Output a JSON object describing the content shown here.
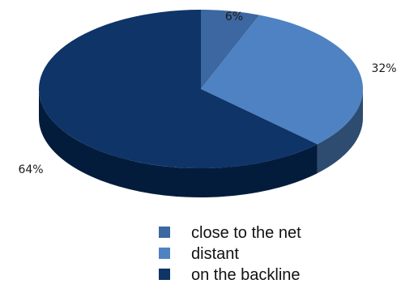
{
  "chart_data": {
    "type": "pie",
    "style": "3d",
    "categories": [
      "close to the net",
      "distant",
      "on the backline"
    ],
    "values": [
      6,
      32,
      64
    ],
    "labels": [
      "6%",
      "32%",
      "64%"
    ],
    "colors": {
      "close to the net": "#3d67a0",
      "distant": "#4e82c2",
      "on the backline": "#0e3468"
    },
    "side_colors": {
      "close to the net": "#2c4c78",
      "distant": "#2e4b70",
      "on the backline": "#041c3c"
    },
    "legend_position": "bottom-right",
    "title": "",
    "grid": false
  }
}
